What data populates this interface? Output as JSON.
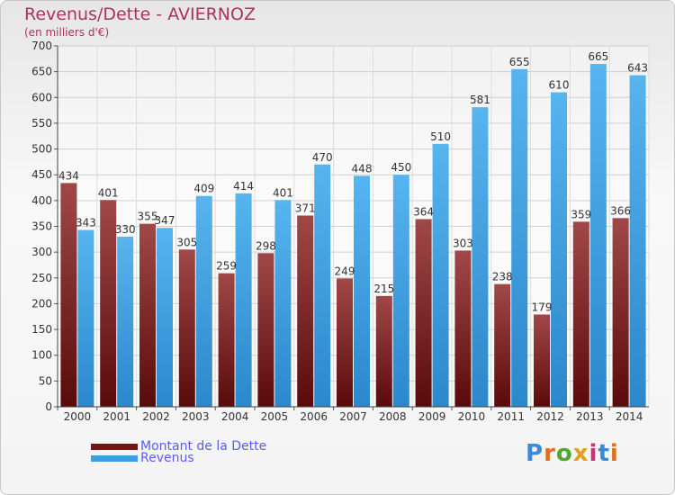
{
  "header": {
    "title": "Revenus/Dette - AVIERNOZ",
    "subtitle": "(en milliers d'€)"
  },
  "legend": [
    {
      "label": "Montant de la Dette",
      "color": "#8b1a1a"
    },
    {
      "label": "Revenus",
      "color": "#3a9ee0"
    }
  ],
  "logo": {
    "text": "Proxiti"
  },
  "colors": {
    "debt_top": "#a04848",
    "debt_bottom": "#5a0a0a",
    "revenue_top": "#56b4ef",
    "revenue_bottom": "#2a88cc"
  },
  "chart_data": {
    "type": "bar",
    "title": "Revenus/Dette - AVIERNOZ",
    "subtitle": "(en milliers d'€)",
    "categories": [
      "2000",
      "2001",
      "2002",
      "2003",
      "2004",
      "2005",
      "2006",
      "2007",
      "2008",
      "2009",
      "2010",
      "2011",
      "2012",
      "2013",
      "2014"
    ],
    "series": [
      {
        "name": "Montant de la Dette",
        "values": [
          434,
          401,
          355,
          305,
          259,
          298,
          371,
          249,
          215,
          364,
          303,
          238,
          179,
          359,
          366
        ]
      },
      {
        "name": "Revenus",
        "values": [
          343,
          330,
          347,
          409,
          414,
          401,
          470,
          448,
          450,
          510,
          581,
          655,
          610,
          665,
          643
        ]
      }
    ],
    "ylim": [
      0,
      700
    ],
    "yticks": [
      0,
      50,
      100,
      150,
      200,
      250,
      300,
      350,
      400,
      450,
      500,
      550,
      600,
      650,
      700
    ],
    "grid": true,
    "legend_position": "bottom-left"
  }
}
